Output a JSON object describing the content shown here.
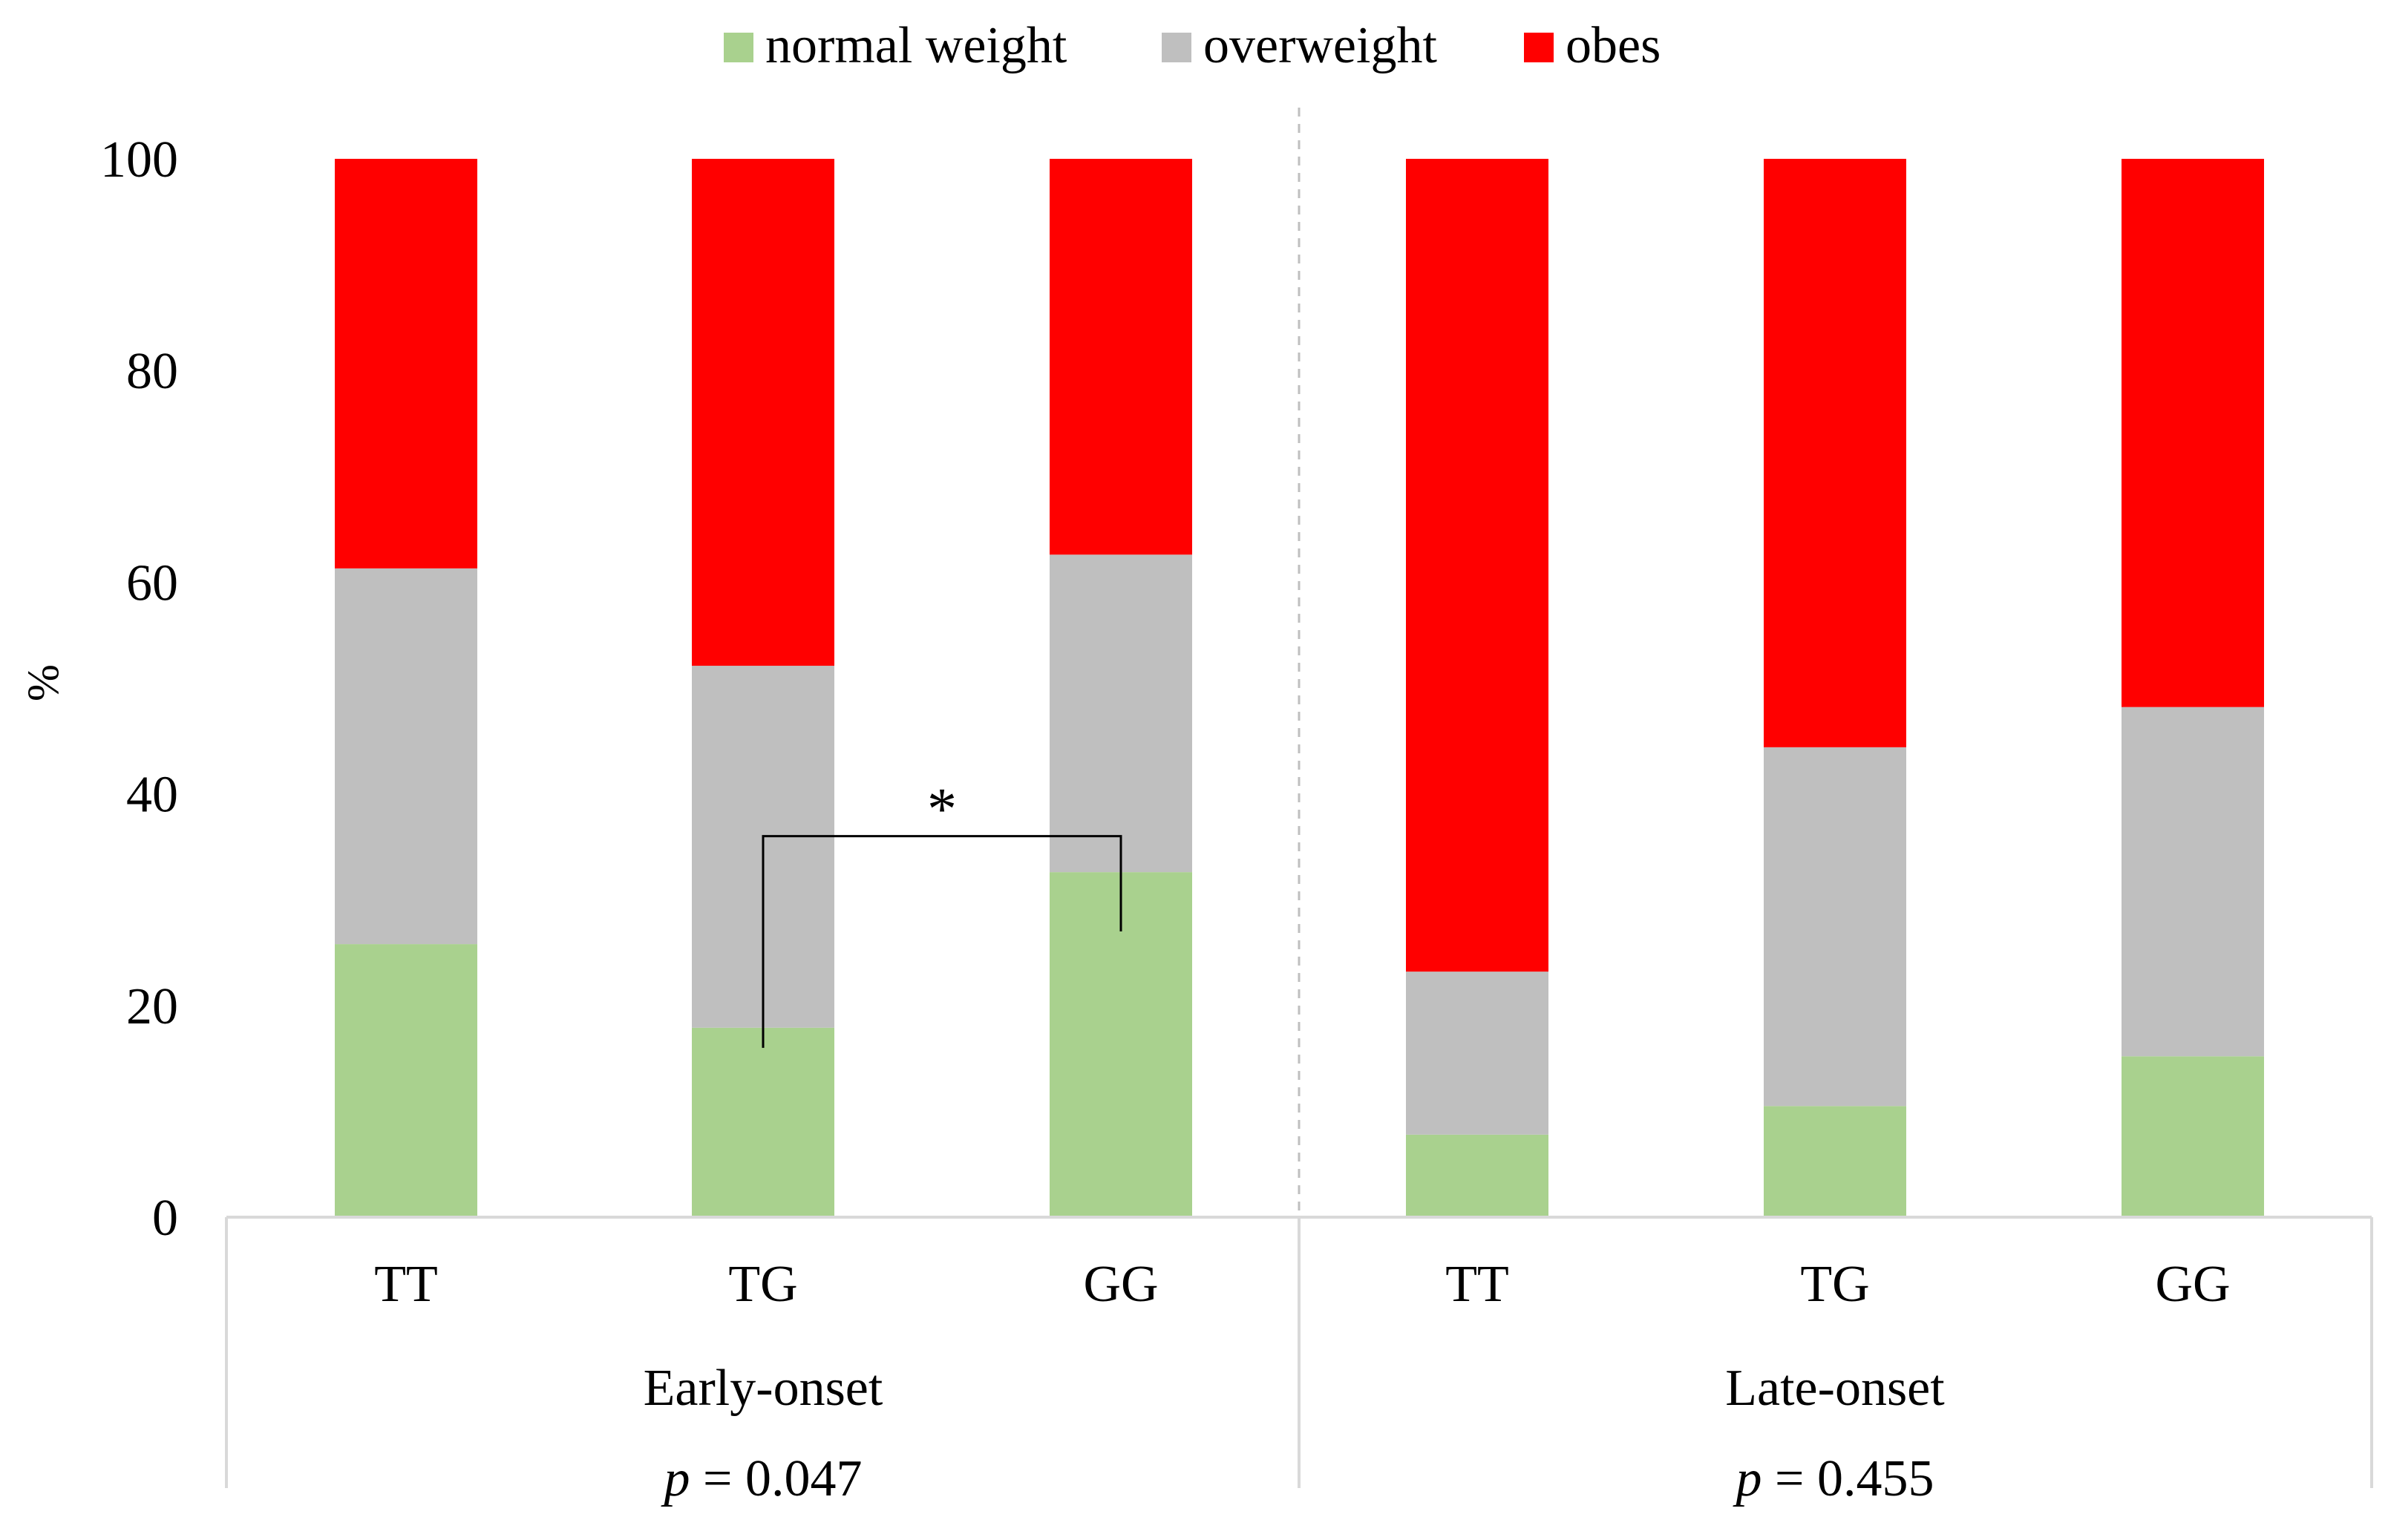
{
  "chart_data": {
    "type": "bar",
    "stacked": true,
    "percent": true,
    "title": "",
    "xlabel": "",
    "ylabel": "%",
    "ylim": [
      0,
      100
    ],
    "yticks": [
      "0",
      "20",
      "40",
      "60",
      "80",
      "100"
    ],
    "grid": false,
    "legend_position": "top",
    "groups": [
      {
        "name": "Early-onset",
        "pvalue_prefix": "p",
        "pvalue_text": " = 0.047",
        "categories": [
          "TT",
          "TG",
          "GG"
        ]
      },
      {
        "name": "Late-onset",
        "pvalue_prefix": "p",
        "pvalue_text": " = 0.455",
        "categories": [
          "TT",
          "TG",
          "GG"
        ]
      }
    ],
    "categories": [
      "TT",
      "TG",
      "GG",
      "TT",
      "TG",
      "GG"
    ],
    "series": [
      {
        "name": "normal weight",
        "color": "#a9d18e",
        "values": [
          25.8,
          17.9,
          32.6,
          7.8,
          10.5,
          15.2
        ]
      },
      {
        "name": "overweight",
        "color": "#bfbfbf",
        "values": [
          35.5,
          34.2,
          30.0,
          15.4,
          33.9,
          33.0
        ]
      },
      {
        "name": "obes",
        "color": "#ff0000",
        "values": [
          38.7,
          47.9,
          37.4,
          76.8,
          55.6,
          51.8
        ]
      }
    ],
    "annotations": [
      {
        "type": "significance",
        "label": "*",
        "from_bar": 1,
        "to_bar": 2,
        "bracket_y": 36,
        "left_end": 16,
        "right_end": 27
      }
    ]
  }
}
